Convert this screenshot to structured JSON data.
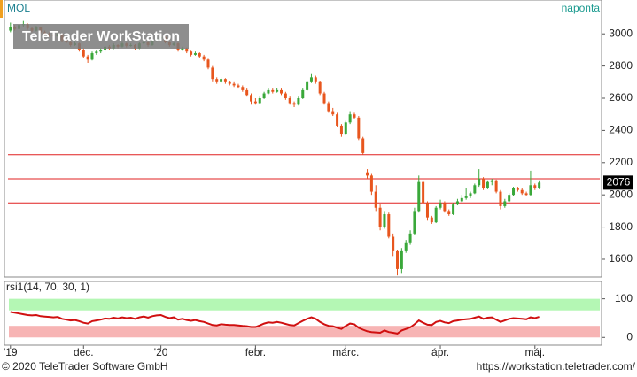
{
  "header": {
    "symbol": "MOL",
    "interval": "naponta",
    "watermark": "TeleTrader WorkStation"
  },
  "chart_data": [
    {
      "type": "candlestick",
      "up_color": "#3aa83a",
      "down_color": "#e8561e",
      "xlim": [
        -1.4,
        137.5
      ],
      "ylim": [
        1490,
        3210
      ],
      "yticks": [
        1600,
        1800,
        2000,
        2200,
        2400,
        2600,
        2800,
        3000
      ],
      "xticks": [
        {
          "value": 0,
          "label": "'19"
        },
        {
          "value": 17,
          "label": "dec."
        },
        {
          "value": 35,
          "label": "'20"
        },
        {
          "value": 57,
          "label": "febr."
        },
        {
          "value": 78,
          "label": "márc."
        },
        {
          "value": 100,
          "label": "ápr."
        },
        {
          "value": 122,
          "label": "máj."
        }
      ],
      "hlines": [
        2250,
        2100,
        1950
      ],
      "hline_color": "#e02020",
      "candles": [
        [
          3020,
          3070,
          3010,
          3040
        ],
        [
          3040,
          3055,
          3020,
          3030
        ],
        [
          3030,
          3070,
          3025,
          3055
        ],
        [
          3055,
          3080,
          3045,
          3060
        ],
        [
          3060,
          3065,
          3025,
          3035
        ],
        [
          3035,
          3045,
          3010,
          3020
        ],
        [
          3020,
          3050,
          3015,
          3040
        ],
        [
          3040,
          3045,
          3000,
          3010
        ],
        [
          3010,
          3020,
          2990,
          3000
        ],
        [
          3000,
          3010,
          2980,
          2990
        ],
        [
          2990,
          3000,
          2970,
          2985
        ],
        [
          2985,
          3015,
          2980,
          3000
        ],
        [
          3000,
          3005,
          2950,
          2960
        ],
        [
          2960,
          2970,
          2940,
          2950
        ],
        [
          2950,
          2960,
          2920,
          2930
        ],
        [
          2930,
          2955,
          2925,
          2940
        ],
        [
          2940,
          2945,
          2890,
          2900
        ],
        [
          2900,
          2910,
          2850,
          2860
        ],
        [
          2860,
          2870,
          2820,
          2840
        ],
        [
          2840,
          2890,
          2835,
          2880
        ],
        [
          2880,
          2900,
          2870,
          2890
        ],
        [
          2890,
          2910,
          2880,
          2900
        ],
        [
          2900,
          2930,
          2890,
          2920
        ],
        [
          2920,
          2930,
          2900,
          2910
        ],
        [
          2910,
          2940,
          2905,
          2930
        ],
        [
          2930,
          2935,
          2910,
          2920
        ],
        [
          2920,
          2955,
          2915,
          2940
        ],
        [
          2940,
          2945,
          2915,
          2925
        ],
        [
          2925,
          2940,
          2920,
          2930
        ],
        [
          2930,
          2935,
          2900,
          2910
        ],
        [
          2910,
          2950,
          2905,
          2940
        ],
        [
          2940,
          2965,
          2935,
          2950
        ],
        [
          2950,
          2955,
          2920,
          2930
        ],
        [
          2930,
          2970,
          2925,
          2960
        ],
        [
          2960,
          2980,
          2955,
          2970
        ],
        [
          2970,
          2995,
          2960,
          2980
        ],
        [
          2980,
          2985,
          2940,
          2950
        ],
        [
          2950,
          2955,
          2920,
          2930
        ],
        [
          2930,
          2950,
          2925,
          2940
        ],
        [
          2940,
          2945,
          2890,
          2900
        ],
        [
          2900,
          2920,
          2895,
          2910
        ],
        [
          2910,
          2915,
          2880,
          2890
        ],
        [
          2890,
          2895,
          2860,
          2870
        ],
        [
          2870,
          2890,
          2865,
          2880
        ],
        [
          2880,
          2885,
          2850,
          2860
        ],
        [
          2860,
          2870,
          2830,
          2840
        ],
        [
          2840,
          2845,
          2780,
          2790
        ],
        [
          2790,
          2800,
          2700,
          2720
        ],
        [
          2720,
          2730,
          2690,
          2700
        ],
        [
          2700,
          2730,
          2695,
          2720
        ],
        [
          2720,
          2725,
          2690,
          2700
        ],
        [
          2700,
          2710,
          2680,
          2690
        ],
        [
          2690,
          2700,
          2670,
          2680
        ],
        [
          2680,
          2690,
          2660,
          2670
        ],
        [
          2670,
          2680,
          2640,
          2650
        ],
        [
          2650,
          2660,
          2610,
          2620
        ],
        [
          2620,
          2630,
          2560,
          2580
        ],
        [
          2580,
          2600,
          2560,
          2570
        ],
        [
          2570,
          2610,
          2565,
          2600
        ],
        [
          2600,
          2640,
          2595,
          2630
        ],
        [
          2630,
          2660,
          2625,
          2650
        ],
        [
          2650,
          2660,
          2630,
          2640
        ],
        [
          2640,
          2665,
          2635,
          2650
        ],
        [
          2650,
          2660,
          2620,
          2630
        ],
        [
          2630,
          2640,
          2590,
          2600
        ],
        [
          2600,
          2610,
          2560,
          2570
        ],
        [
          2570,
          2580,
          2545,
          2560
        ],
        [
          2560,
          2610,
          2555,
          2600
        ],
        [
          2600,
          2660,
          2595,
          2650
        ],
        [
          2650,
          2710,
          2645,
          2700
        ],
        [
          2700,
          2750,
          2695,
          2730
        ],
        [
          2730,
          2740,
          2690,
          2700
        ],
        [
          2700,
          2710,
          2620,
          2630
        ],
        [
          2630,
          2640,
          2560,
          2570
        ],
        [
          2570,
          2580,
          2510,
          2520
        ],
        [
          2520,
          2540,
          2490,
          2500
        ],
        [
          2500,
          2510,
          2420,
          2430
        ],
        [
          2430,
          2440,
          2360,
          2380
        ],
        [
          2380,
          2460,
          2375,
          2450
        ],
        [
          2450,
          2520,
          2440,
          2500
        ],
        [
          2500,
          2510,
          2470,
          2480
        ],
        [
          2480,
          2490,
          2340,
          2350
        ],
        [
          2350,
          2360,
          2250,
          2260
        ],
        [
          2140,
          2160,
          2100,
          2120
        ],
        [
          2120,
          2130,
          2000,
          2020
        ],
        [
          2020,
          2060,
          1900,
          1920
        ],
        [
          1920,
          1940,
          1780,
          1800
        ],
        [
          1800,
          1900,
          1790,
          1880
        ],
        [
          1880,
          1890,
          1730,
          1740
        ],
        [
          1740,
          1760,
          1620,
          1650
        ],
        [
          1650,
          1660,
          1500,
          1540
        ],
        [
          1540,
          1670,
          1510,
          1650
        ],
        [
          1650,
          1720,
          1640,
          1700
        ],
        [
          1700,
          1780,
          1690,
          1760
        ],
        [
          1760,
          1920,
          1750,
          1900
        ],
        [
          1900,
          2120,
          1890,
          2080
        ],
        [
          2080,
          2090,
          1940,
          1950
        ],
        [
          1950,
          1960,
          1840,
          1860
        ],
        [
          1860,
          1870,
          1820,
          1830
        ],
        [
          1830,
          1930,
          1825,
          1920
        ],
        [
          1920,
          1970,
          1910,
          1950
        ],
        [
          1950,
          1960,
          1890,
          1900
        ],
        [
          1900,
          1910,
          1870,
          1880
        ],
        [
          1880,
          1950,
          1875,
          1940
        ],
        [
          1940,
          1975,
          1935,
          1960
        ],
        [
          1960,
          2000,
          1955,
          1980
        ],
        [
          1980,
          2040,
          1970,
          1990
        ],
        [
          1990,
          2020,
          1980,
          2010
        ],
        [
          2010,
          2070,
          2005,
          2060
        ],
        [
          2060,
          2160,
          2050,
          2100
        ],
        [
          2100,
          2110,
          2030,
          2040
        ],
        [
          2040,
          2090,
          2035,
          2080
        ],
        [
          2080,
          2100,
          2060,
          2090
        ],
        [
          2090,
          2095,
          2010,
          2020
        ],
        [
          2020,
          2030,
          1910,
          1930
        ],
        [
          1930,
          1975,
          1920,
          1960
        ],
        [
          1960,
          2010,
          1955,
          2000
        ],
        [
          2000,
          2050,
          1995,
          2040
        ],
        [
          2040,
          2050,
          2020,
          2030
        ],
        [
          2030,
          2040,
          2000,
          2010
        ],
        [
          2010,
          2020,
          1990,
          2000
        ],
        [
          2000,
          2150,
          1995,
          2060
        ],
        [
          2060,
          2070,
          2030,
          2040
        ],
        [
          2040,
          2090,
          2035,
          2076
        ]
      ]
    },
    {
      "type": "line",
      "title": "rsi1(14, 70, 30, 1)",
      "color": "#d01010",
      "xlim": [
        -1.4,
        137.5
      ],
      "ylim": [
        -20,
        145
      ],
      "yticks": [
        0,
        100
      ],
      "bands": [
        {
          "from": 70,
          "to": 100,
          "color": "#b4f7b4"
        },
        {
          "from": 0,
          "to": 30,
          "color": "#f7b4b4"
        }
      ],
      "values": [
        66,
        64,
        62,
        60,
        58,
        57,
        58,
        55,
        54,
        53,
        52,
        53,
        48,
        46,
        44,
        45,
        42,
        38,
        36,
        42,
        44,
        46,
        49,
        48,
        51,
        49,
        52,
        50,
        51,
        48,
        52,
        54,
        51,
        55,
        57,
        58,
        53,
        50,
        52,
        46,
        48,
        45,
        43,
        45,
        42,
        40,
        36,
        32,
        31,
        34,
        33,
        32,
        32,
        31,
        30,
        29,
        27,
        27,
        31,
        36,
        39,
        38,
        40,
        38,
        35,
        32,
        31,
        37,
        43,
        48,
        52,
        48,
        40,
        34,
        30,
        29,
        25,
        22,
        30,
        36,
        34,
        25,
        20,
        16,
        14,
        13,
        12,
        18,
        14,
        12,
        10,
        18,
        22,
        26,
        34,
        44,
        38,
        33,
        32,
        40,
        43,
        39,
        37,
        42,
        44,
        46,
        47,
        48,
        51,
        54,
        48,
        51,
        52,
        46,
        40,
        44,
        48,
        50,
        49,
        48,
        47,
        52,
        50,
        53
      ]
    }
  ],
  "footer": {
    "copyright": "© 2020 TeleTrader Software GmbH",
    "url": "https://workstation.teletrader.com/"
  }
}
